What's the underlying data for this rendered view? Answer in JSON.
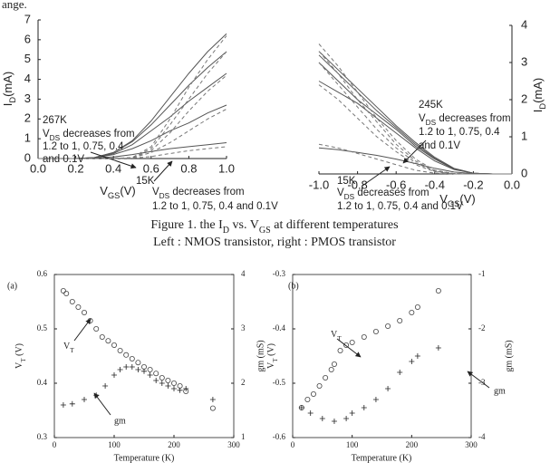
{
  "fragment": "ange.",
  "captions": [
    [
      "Figure 1. the I",
      "D",
      " vs. V",
      "GS",
      " at different temperatures"
    ],
    "Left : NMOS transistor, right : PMOS transistor"
  ],
  "chart_data": [
    {
      "type": "line",
      "x_label": [
        "V",
        "GS",
        "(V)"
      ],
      "y_label": [
        "I",
        "D",
        "(mA)"
      ],
      "x": [
        0,
        0.1,
        0.2,
        0.3,
        0.4,
        0.5,
        0.6,
        0.7,
        0.8,
        0.9,
        1.0
      ],
      "xlim": [
        0,
        1
      ],
      "xticks": [
        {
          "value": 0,
          "label": "0.0"
        },
        0.2,
        0.4,
        0.6,
        0.8,
        {
          "value": 1,
          "label": "1.0"
        }
      ],
      "ylim": [
        0,
        7
      ],
      "yticks": [
        0,
        1,
        2,
        3,
        4,
        5,
        6,
        7
      ],
      "series": [
        {
          "color": "#555",
          "style": "solid",
          "values": [
            0,
            0,
            0,
            0.05,
            0.3,
            0.9,
            1.9,
            3.1,
            4.3,
            5.4,
            6.3
          ]
        },
        {
          "color": "#555",
          "style": "solid",
          "values": [
            0,
            0,
            0,
            0.05,
            0.3,
            0.85,
            1.7,
            2.7,
            3.7,
            4.6,
            5.4
          ]
        },
        {
          "color": "#555",
          "style": "solid",
          "values": [
            0,
            0,
            0,
            0.04,
            0.25,
            0.7,
            1.4,
            2.1,
            2.9,
            3.6,
            4.3
          ]
        },
        {
          "color": "#555",
          "style": "solid",
          "values": [
            0,
            0,
            0,
            0.03,
            0.2,
            0.5,
            0.9,
            1.4,
            1.8,
            2.3,
            2.7
          ]
        },
        {
          "color": "#555",
          "style": "solid",
          "values": [
            0,
            0,
            0,
            0.02,
            0.08,
            0.2,
            0.35,
            0.5,
            0.6,
            0.7,
            0.8
          ]
        },
        {
          "color": "#777",
          "style": "dashed",
          "values": [
            0,
            0,
            0,
            0,
            0,
            0.05,
            0.6,
            2.0,
            3.6,
            5.0,
            6.2
          ]
        },
        {
          "color": "#777",
          "style": "dashed",
          "values": [
            0,
            0,
            0,
            0,
            0,
            0.05,
            0.5,
            1.7,
            3.0,
            4.3,
            5.4
          ]
        },
        {
          "color": "#777",
          "style": "dashed",
          "values": [
            0,
            0,
            0,
            0,
            0,
            0.04,
            0.4,
            1.3,
            2.4,
            3.4,
            4.2
          ]
        },
        {
          "color": "#777",
          "style": "dashed",
          "values": [
            0,
            0,
            0,
            0,
            0,
            0.03,
            0.3,
            0.8,
            1.4,
            2.0,
            2.5
          ]
        },
        {
          "color": "#777",
          "style": "dashed",
          "values": [
            0,
            0,
            0,
            0,
            0,
            0.02,
            0.1,
            0.25,
            0.4,
            0.5,
            0.6
          ]
        }
      ],
      "annotations": [
        "267K",
        [
          "V",
          "DS",
          " decreases from"
        ],
        "1.2 to 1, 0.75, 0.4",
        "and 0.1V",
        "15K",
        [
          "V",
          "DS",
          " decreases from"
        ],
        "1.2 to 1, 0.75, 0.4 and 0.1V"
      ]
    },
    {
      "type": "line",
      "x_label": [
        "V",
        "GS",
        "(V)"
      ],
      "y_label": [
        "I",
        "D",
        "(mA)"
      ],
      "x": [
        -1.0,
        -0.9,
        -0.8,
        -0.7,
        -0.6,
        -0.5,
        -0.4,
        -0.3,
        -0.2,
        -0.1,
        0
      ],
      "xlim": [
        -1,
        0
      ],
      "xticks": [
        {
          "value": -1,
          "label": "-1.0"
        },
        -0.8,
        -0.6,
        -0.4,
        -0.2,
        {
          "value": 0,
          "label": "0.0"
        }
      ],
      "ylim": [
        0,
        4
      ],
      "yticks": [
        0,
        1,
        2,
        3,
        4
      ],
      "series": [
        {
          "color": "#555",
          "style": "solid",
          "values": [
            3.3,
            2.8,
            2.3,
            1.8,
            1.3,
            0.85,
            0.45,
            0.15,
            0.02,
            0,
            0
          ]
        },
        {
          "color": "#555",
          "style": "solid",
          "values": [
            3.2,
            2.7,
            2.2,
            1.7,
            1.25,
            0.8,
            0.42,
            0.14,
            0.02,
            0,
            0
          ]
        },
        {
          "color": "#555",
          "style": "solid",
          "values": [
            3.0,
            2.5,
            2.0,
            1.6,
            1.2,
            0.75,
            0.4,
            0.13,
            0.02,
            0,
            0
          ]
        },
        {
          "color": "#555",
          "style": "solid",
          "values": [
            2.5,
            2.2,
            1.9,
            1.5,
            1.1,
            0.7,
            0.35,
            0.12,
            0.02,
            0,
            0
          ]
        },
        {
          "color": "#555",
          "style": "solid",
          "values": [
            0.7,
            0.65,
            0.58,
            0.5,
            0.4,
            0.28,
            0.15,
            0.05,
            0.01,
            0,
            0
          ]
        },
        {
          "color": "#777",
          "style": "dashed",
          "values": [
            3.5,
            2.9,
            2.2,
            1.5,
            0.9,
            0.4,
            0.1,
            0.01,
            0,
            0,
            0
          ]
        },
        {
          "color": "#777",
          "style": "dashed",
          "values": [
            3.3,
            2.7,
            2.0,
            1.4,
            0.8,
            0.35,
            0.08,
            0.01,
            0,
            0,
            0
          ]
        },
        {
          "color": "#777",
          "style": "dashed",
          "values": [
            3.0,
            2.4,
            1.8,
            1.2,
            0.7,
            0.3,
            0.07,
            0.01,
            0,
            0,
            0
          ]
        },
        {
          "color": "#777",
          "style": "dashed",
          "values": [
            2.4,
            2.0,
            1.5,
            1.0,
            0.6,
            0.25,
            0.06,
            0,
            0,
            0,
            0
          ]
        },
        {
          "color": "#777",
          "style": "dashed",
          "values": [
            0.8,
            0.7,
            0.55,
            0.4,
            0.25,
            0.1,
            0.02,
            0,
            0,
            0,
            0
          ]
        }
      ],
      "annotations": [
        "245K",
        [
          "V",
          "DS",
          " decreases from"
        ],
        "1.2 to 1, 0.75, 0.4",
        "and 0.1V",
        "15K",
        [
          "V",
          "DS",
          " decreases from"
        ],
        "1.2 to 1, 0.75, 0.4 and 0.1V"
      ]
    },
    {
      "type": "scatter",
      "panel": "(a)",
      "x_label": "Temperature (K)",
      "y_label": [
        "V",
        "T",
        " (V)"
      ],
      "y2_label": "gm (mS)",
      "xlim": [
        0,
        300
      ],
      "xticks": [
        0,
        100,
        200,
        300
      ],
      "ylim": [
        0.3,
        0.6
      ],
      "yticks": [
        0.3,
        0.4,
        0.5,
        0.6
      ],
      "y2lim": [
        1,
        4
      ],
      "y2ticks": [
        1,
        2,
        3,
        4
      ],
      "series": [
        {
          "marker": "circle",
          "color": "#444",
          "x": [
            15,
            20,
            30,
            40,
            50,
            60,
            70,
            80,
            90,
            100,
            110,
            120,
            130,
            140,
            150,
            160,
            170,
            180,
            190,
            200,
            210,
            220,
            265
          ],
          "values": [
            0.57,
            0.565,
            0.55,
            0.54,
            0.53,
            0.515,
            0.5,
            0.485,
            0.478,
            0.47,
            0.46,
            0.452,
            0.445,
            0.438,
            0.43,
            0.425,
            0.418,
            0.41,
            0.405,
            0.4,
            0.395,
            0.385,
            0.354
          ]
        },
        {
          "marker": "plus",
          "color": "#222",
          "axis": "y2",
          "x": [
            15,
            30,
            50,
            70,
            85,
            100,
            110,
            120,
            130,
            140,
            150,
            160,
            170,
            180,
            190,
            200,
            210,
            220,
            265
          ],
          "values": [
            1.6,
            1.62,
            1.7,
            1.78,
            1.95,
            2.15,
            2.25,
            2.3,
            2.3,
            2.25,
            2.22,
            2.15,
            2.05,
            2.0,
            1.95,
            1.9,
            1.87,
            1.9,
            1.7
          ]
        }
      ],
      "annotations": [
        [
          "V",
          "T",
          ""
        ],
        "gm"
      ]
    },
    {
      "type": "scatter",
      "panel": "(b)",
      "x_label": "Temperature (K)",
      "y_label": [
        "V",
        "T",
        " (V)"
      ],
      "y2_label": "gm (mS)",
      "xlim": [
        0,
        300
      ],
      "xticks": [
        0,
        100,
        200,
        300
      ],
      "ylim": [
        -0.6,
        -0.3
      ],
      "yticks": [
        -0.6,
        -0.5,
        -0.4,
        -0.3
      ],
      "y2lim": [
        -4,
        -1
      ],
      "y2ticks": [
        -4,
        -3,
        -2,
        -1
      ],
      "series": [
        {
          "marker": "circle",
          "color": "#444",
          "x": [
            15,
            25,
            35,
            45,
            55,
            65,
            70,
            80,
            90,
            100,
            120,
            140,
            160,
            180,
            200,
            210,
            245
          ],
          "values": [
            -0.545,
            -0.53,
            -0.52,
            -0.505,
            -0.49,
            -0.475,
            -0.465,
            -0.44,
            -0.43,
            -0.425,
            -0.415,
            -0.405,
            -0.395,
            -0.385,
            -0.37,
            -0.36,
            -0.33
          ]
        },
        {
          "marker": "plus",
          "color": "#222",
          "axis": "y2",
          "x": [
            15,
            30,
            50,
            70,
            90,
            100,
            120,
            140,
            160,
            180,
            200,
            210,
            245
          ],
          "values": [
            -3.45,
            -3.55,
            -3.65,
            -3.7,
            -3.65,
            -3.55,
            -3.45,
            -3.3,
            -3.1,
            -2.8,
            -2.6,
            -2.5,
            -2.35
          ]
        }
      ],
      "annotations": [
        [
          "V",
          "T",
          ""
        ],
        "gm"
      ]
    }
  ]
}
